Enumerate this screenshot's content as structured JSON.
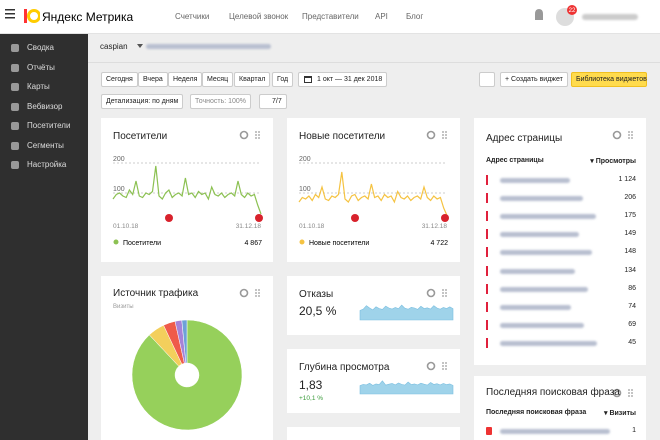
{
  "header": {
    "logo": "Яндекс Метрика",
    "nav": [
      "Счетчики",
      "Целевой звонок",
      "Представители",
      "API",
      "Блог"
    ],
    "badge": "22"
  },
  "sidebar": {
    "items": [
      "Сводка",
      "Отчёты",
      "Карты",
      "Вебвизор",
      "Посетители",
      "Сегменты",
      "Настройка"
    ]
  },
  "counter": {
    "name": "caspian"
  },
  "toolbar": {
    "periods": [
      "Сегодня",
      "Вчера",
      "Неделя",
      "Месяц",
      "Квартал",
      "Год"
    ],
    "date_range": "1 окт — 31 дек 2018",
    "create_widget": "+ Создать виджет",
    "library": "Библиотека виджетов",
    "detail": "Детализация: по дням",
    "accuracy": "Точность: 100%",
    "segments": "7/7"
  },
  "widgets": {
    "visitors": {
      "title": "Посетители",
      "x_start": "01.10.18",
      "x_end": "31.12.18",
      "legend": "Посетители",
      "total": "4 867",
      "chart": {
        "type": "line",
        "color": "#8cc152",
        "ylim": [
          0,
          210
        ],
        "yticks": [
          100,
          200
        ],
        "grid": true,
        "values": [
          80,
          95,
          100,
          90,
          85,
          110,
          95,
          140,
          90,
          85,
          100,
          95,
          105,
          190,
          90,
          80,
          100,
          110,
          85,
          95,
          100,
          90,
          150,
          95,
          100,
          85,
          105,
          95,
          100,
          80,
          120,
          95,
          90,
          100,
          85,
          95,
          100,
          90,
          140,
          95,
          85,
          100,
          90,
          95,
          60,
          30
        ]
      }
    },
    "new_visitors": {
      "title": "Новые посетители",
      "x_start": "01.10.18",
      "x_end": "31.12.18",
      "legend": "Новые посетители",
      "total": "4 722",
      "chart": {
        "type": "line",
        "color": "#f5c342",
        "ylim": [
          0,
          210
        ],
        "yticks": [
          100,
          200
        ],
        "grid": true,
        "values": [
          70,
          85,
          80,
          90,
          75,
          95,
          85,
          120,
          80,
          75,
          90,
          85,
          95,
          170,
          80,
          70,
          90,
          95,
          75,
          85,
          90,
          80,
          130,
          85,
          90,
          75,
          95,
          85,
          90,
          70,
          105,
          85,
          80,
          90,
          75,
          85,
          90,
          80,
          120,
          85,
          75,
          90,
          80,
          85,
          50,
          25
        ]
      }
    },
    "pages": {
      "title": "Адрес страницы",
      "col1": "Адрес страницы",
      "col2": "▾ Просмотры",
      "rows": [
        "1 124",
        "206",
        "175",
        "149",
        "148",
        "134",
        "86",
        "74",
        "69",
        "45"
      ]
    },
    "sources": {
      "title": "Источник трафика",
      "subtitle": "Визиты",
      "chart": {
        "type": "pie",
        "values": [
          88,
          5,
          3.5,
          2,
          1.5
        ],
        "colors": [
          "#96d05b",
          "#f3cf5c",
          "#ef5b4b",
          "#a782d8",
          "#6ea1d8"
        ]
      }
    },
    "bounce": {
      "title": "Отказы",
      "value": "20,5 %",
      "chart": {
        "type": "area",
        "color": "#9fd3ea",
        "ylim": [
          0,
          100
        ],
        "values": [
          40,
          45,
          60,
          50,
          42,
          55,
          48,
          44,
          58,
          50,
          46,
          52,
          47,
          62,
          49,
          45,
          53,
          50,
          44,
          57,
          48,
          51,
          46,
          60,
          50,
          45,
          52,
          48,
          55,
          47
        ]
      }
    },
    "depth": {
      "title": "Глубина просмотра",
      "value": "1,83",
      "change": "+10,1 %",
      "chart": {
        "type": "area",
        "color": "#9fd3ea",
        "ylim": [
          0,
          100
        ],
        "values": [
          35,
          40,
          38,
          45,
          36,
          42,
          39,
          55,
          37,
          41,
          44,
          38,
          46,
          40,
          37,
          50,
          39,
          42,
          38,
          45,
          41,
          37,
          48,
          40,
          43,
          38,
          44,
          39,
          42,
          36
        ]
      }
    },
    "search": {
      "title": "Последняя поисковая фраза",
      "col1": "Последняя поисковая фраза",
      "col2": "▾ Визиты",
      "rows": [
        "1"
      ]
    }
  }
}
